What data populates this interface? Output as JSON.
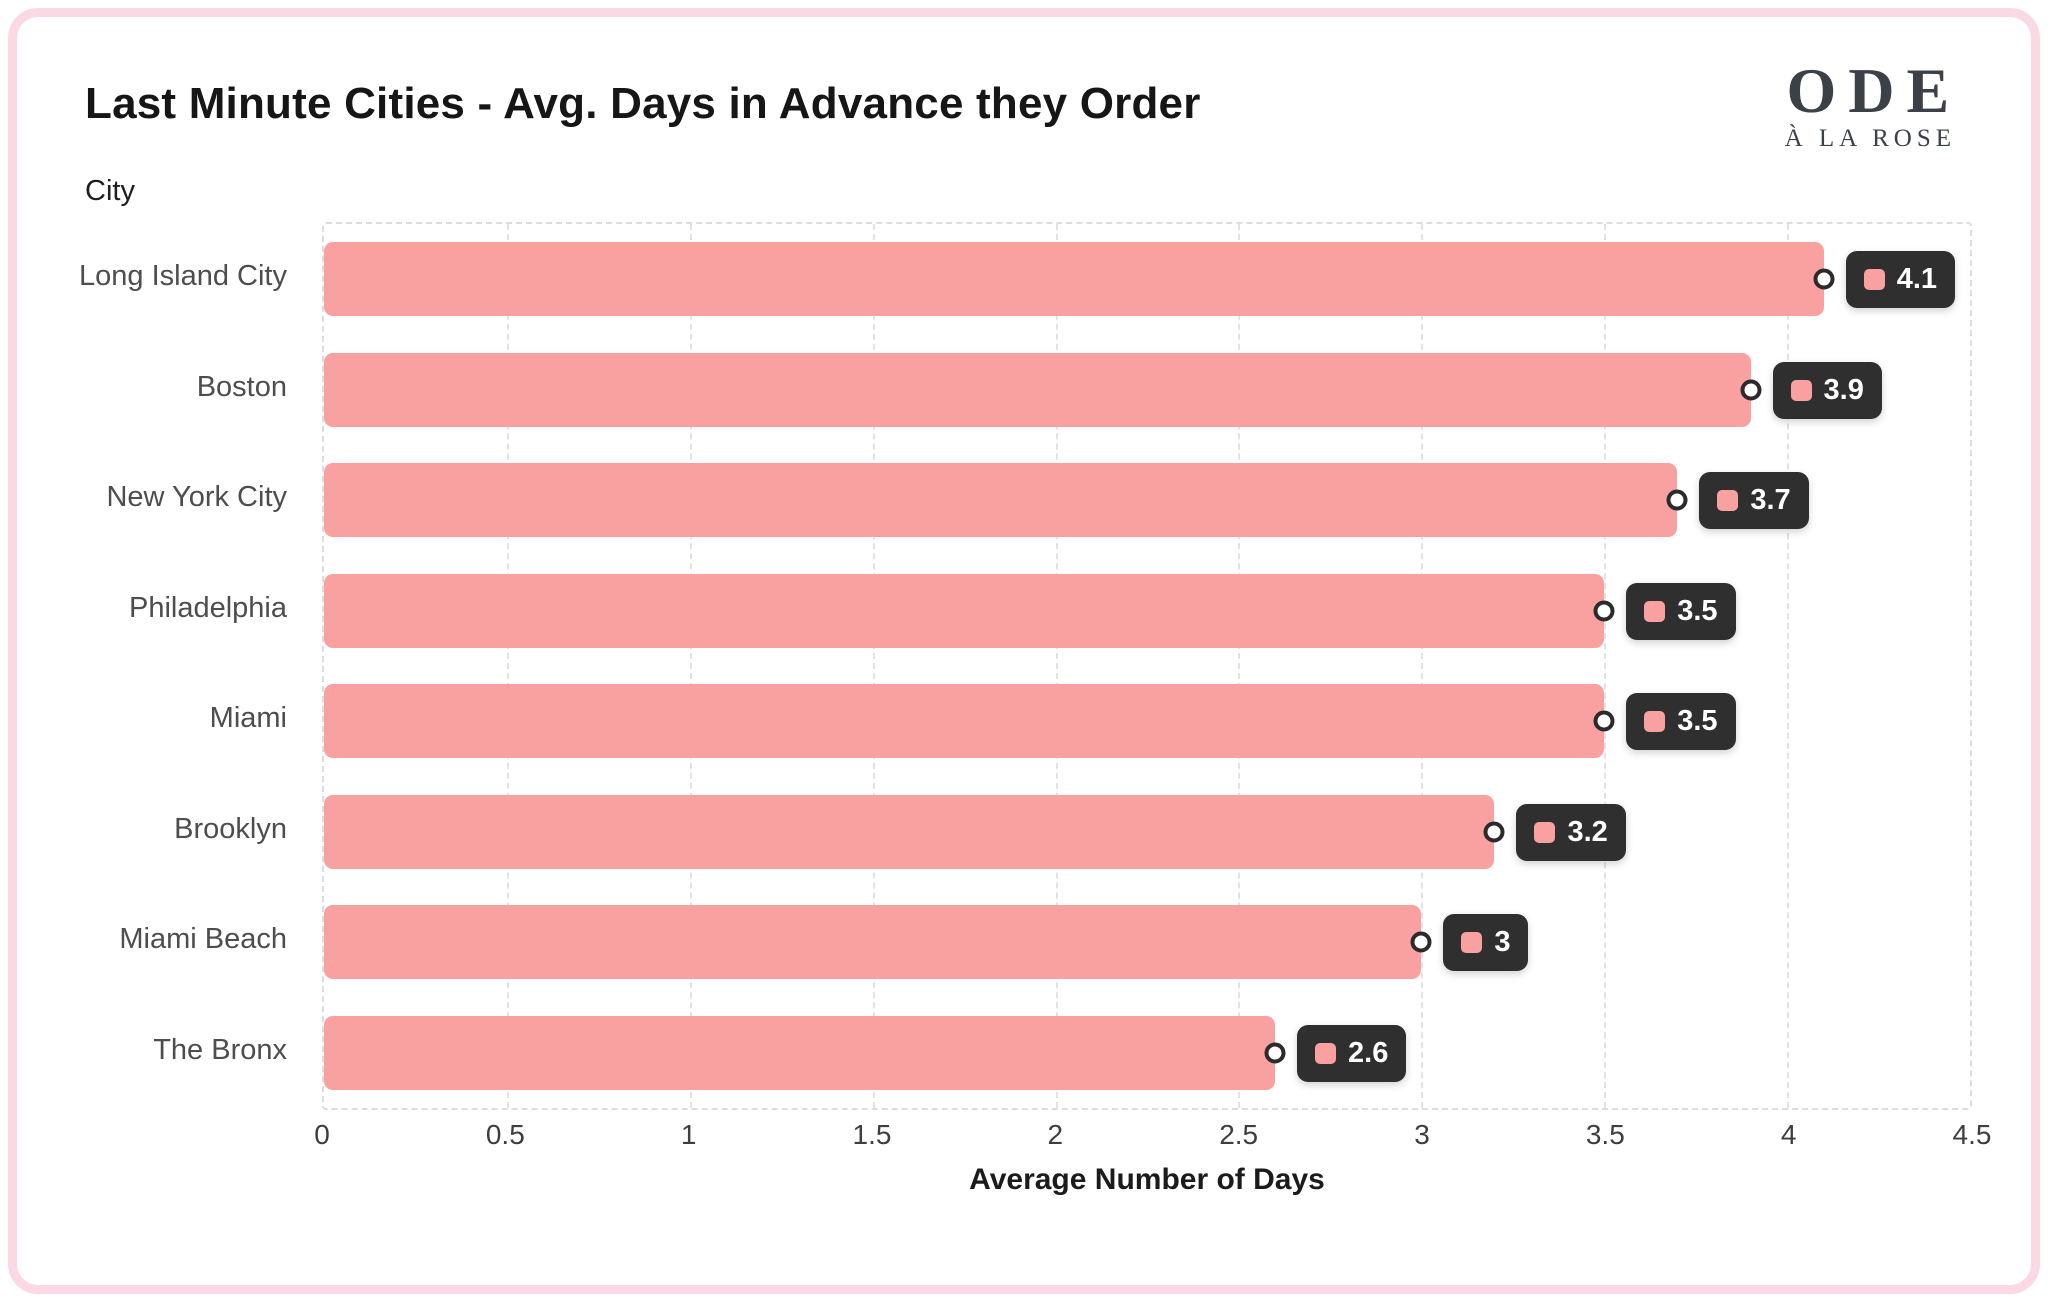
{
  "page": {
    "title": "Last Minute Cities - Avg. Days in Advance they Order",
    "logo": {
      "line1": "ODE",
      "line2": "À LA ROSE"
    }
  },
  "chart_data": {
    "type": "bar",
    "orientation": "horizontal",
    "title": "Last Minute Cities - Avg. Days in Advance they Order",
    "ylabel": "City",
    "xlabel": "Average Number of Days",
    "categories": [
      "Long Island City",
      "Boston",
      "New York City",
      "Philadelphia",
      "Miami",
      "Brooklyn",
      "Miami Beach",
      "The Bronx"
    ],
    "values": [
      4.1,
      3.9,
      3.7,
      3.5,
      3.5,
      3.2,
      3,
      2.6
    ],
    "value_labels": [
      "4.1",
      "3.9",
      "3.7",
      "3.5",
      "3.5",
      "3.2",
      "3",
      "2.6"
    ],
    "xlim": [
      0,
      4.5
    ],
    "xticks": [
      0,
      0.5,
      1,
      1.5,
      2,
      2.5,
      3,
      3.5,
      4,
      4.5
    ],
    "xtick_labels": [
      "0",
      "0.5",
      "1",
      "1.5",
      "2",
      "2.5",
      "3",
      "3.5",
      "4",
      "4.5"
    ],
    "grid": "dashed-vertical",
    "legend": "none",
    "colors": {
      "bar": "#F9A0A0",
      "tooltip_bg": "#2F2F2F",
      "tooltip_text": "#FFFFFF",
      "marker_stroke": "#2B2B2B",
      "page_border": "#FBD9E2",
      "grid": "#E2E2E2"
    }
  }
}
